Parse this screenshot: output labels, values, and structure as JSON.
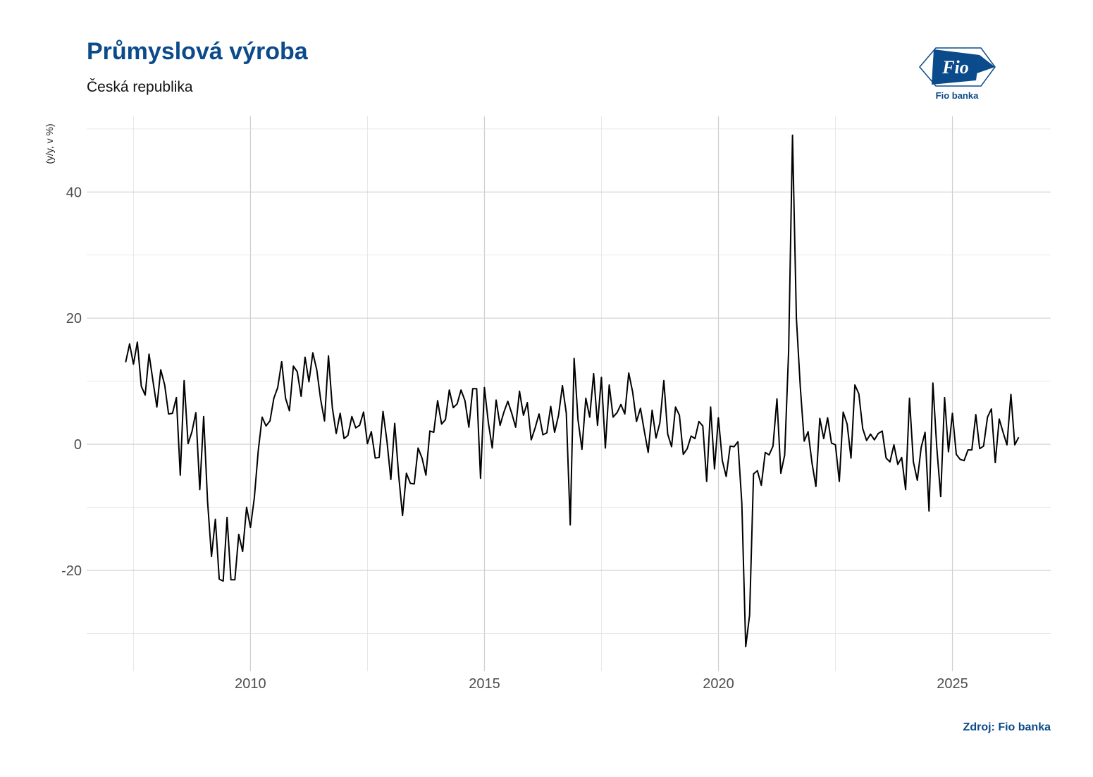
{
  "header": {
    "title": "Průmyslová výroba",
    "subtitle": "Česká republika"
  },
  "logo": {
    "text": "Fio banka",
    "mark": "Fio"
  },
  "source": "Zdroj: Fio banka",
  "colors": {
    "brand": "#0b4a8b",
    "line": "#000000",
    "grid": "#d0d0d0"
  },
  "chart_data": {
    "type": "line",
    "title": "Průmyslová výroba",
    "subtitle": "Česká republika",
    "ylabel": "(y/y, v %)",
    "xlabel": "",
    "xlim": [
      2006.5,
      2027.1
    ],
    "ylim": [
      -36,
      52
    ],
    "x_ticks": [
      2010,
      2015,
      2020,
      2025
    ],
    "y_ticks": [
      -20,
      0,
      20,
      40
    ],
    "grid": true,
    "legend": "none",
    "series": [
      {
        "values": [
          13.0,
          15.9,
          12.7,
          16.2,
          9.2,
          7.8,
          14.3,
          10.0,
          5.9,
          11.8,
          9.4,
          4.8,
          4.9,
          7.4,
          -4.9,
          10.1,
          0.1,
          2.0,
          5.0,
          -7.2,
          4.4,
          -9.0,
          -17.8,
          -11.9,
          -21.4,
          -21.7,
          -11.6,
          -21.5,
          -21.5,
          -14.3,
          -17.0,
          -10.0,
          -13.2,
          -8.5,
          -1.0,
          4.3,
          2.9,
          3.7,
          7.3,
          9.0,
          13.1,
          7.3,
          5.3,
          12.4,
          11.5,
          7.6,
          13.8,
          9.9,
          14.5,
          11.8,
          7.1,
          3.7,
          14.0,
          5.8,
          1.7,
          4.9,
          0.9,
          1.4,
          4.4,
          2.6,
          3.0,
          5.1,
          0.1,
          2.0,
          -2.2,
          -2.1,
          5.2,
          0.5,
          -5.6,
          3.3,
          -4.9,
          -11.3,
          -4.6,
          -6.2,
          -6.3,
          -0.6,
          -2.2,
          -4.9,
          2.1,
          1.9,
          6.9,
          3.2,
          3.9,
          8.6,
          5.8,
          6.4,
          8.6,
          6.9,
          2.7,
          8.8,
          8.8,
          -5.4,
          9.0,
          3.4,
          -0.6,
          7.0,
          3.0,
          5.1,
          6.8,
          4.9,
          2.7,
          8.4,
          4.6,
          6.6,
          0.7,
          2.6,
          4.8,
          1.5,
          1.8,
          6.0,
          1.9,
          4.6,
          9.3,
          4.9,
          -12.8,
          13.6,
          3.9,
          -0.8,
          7.3,
          4.3,
          11.2,
          3.0,
          10.6,
          -0.6,
          9.4,
          4.3,
          5.0,
          6.3,
          4.8,
          11.3,
          8.3,
          3.6,
          5.7,
          2.1,
          -1.3,
          5.4,
          1.0,
          3.4,
          10.1,
          1.6,
          -0.4,
          5.9,
          4.6,
          -1.6,
          -0.7,
          1.3,
          0.9,
          3.6,
          2.9,
          -5.9,
          5.9,
          -3.9,
          4.2,
          -2.6,
          -5.1,
          -0.3,
          -0.4,
          0.4,
          -9.4,
          -32.1,
          -27.1,
          -4.7,
          -4.2,
          -6.5,
          -1.3,
          -1.7,
          -0.3,
          7.2,
          -4.6,
          -1.7,
          14.8,
          49.0,
          20.0,
          9.0,
          0.5,
          2.0,
          -3.0,
          -6.7,
          4.1,
          0.9,
          4.2,
          0.2,
          -0.1,
          -5.9,
          5.1,
          3.2,
          -2.2,
          9.4,
          8.0,
          2.5,
          0.6,
          1.6,
          0.7,
          1.7,
          2.1,
          -2.2,
          -2.8,
          -0.1,
          -3.2,
          -2.1,
          -7.2,
          7.3,
          -2.8,
          -5.7,
          -0.5,
          1.9,
          -10.6,
          9.7,
          -0.5,
          -8.3,
          7.4,
          -1.2,
          4.9,
          -1.6,
          -2.4,
          -2.6,
          -0.9,
          -0.9,
          4.7,
          -0.7,
          -0.3,
          4.3,
          5.6,
          -2.9,
          4.0,
          1.9,
          -0.1,
          7.9,
          -0.1,
          1.1
        ]
      }
    ],
    "x_start": 2007.333,
    "x_step": 0.08333
  }
}
